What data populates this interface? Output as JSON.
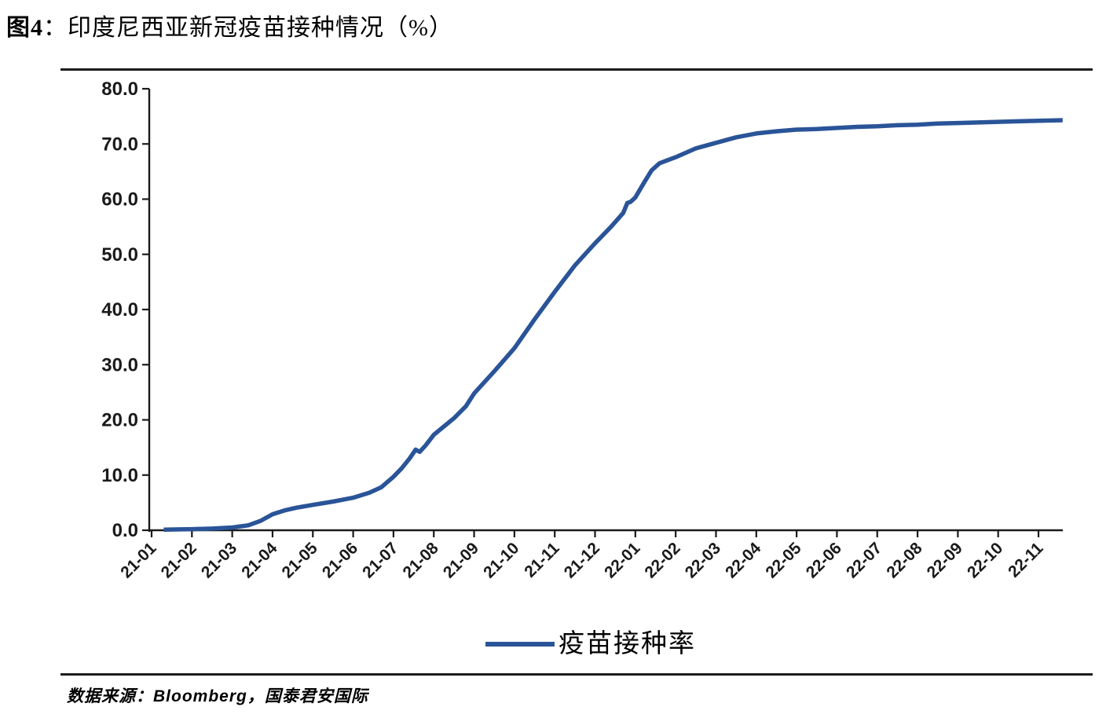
{
  "figure": {
    "title_prefix": "图4",
    "title_separator": "：",
    "title_text": "印度尼西亚新冠疫苗接种情况（%）",
    "source_text": "数据来源：Bloomberg，国泰君安国际"
  },
  "legend": {
    "label": "疫苗接种率"
  },
  "colors": {
    "line": "#2A5498",
    "axis": "#1a1a1a"
  },
  "chart_data": {
    "type": "line",
    "title": "印度尼西亚新冠疫苗接种情况（%）",
    "xlabel": "",
    "ylabel": "",
    "ylim": [
      0,
      80
    ],
    "ytick_labels": [
      "0.0",
      "10.0",
      "20.0",
      "30.0",
      "40.0",
      "50.0",
      "60.0",
      "70.0",
      "80.0"
    ],
    "x": [
      "21-01",
      "21-02",
      "21-03",
      "21-04",
      "21-05",
      "21-06",
      "21-07",
      "21-08",
      "21-09",
      "21-10",
      "21-11",
      "21-12",
      "22-01",
      "22-02",
      "22-03",
      "22-04",
      "22-05",
      "22-06",
      "22-07",
      "22-08",
      "22-09",
      "22-10",
      "22-11"
    ],
    "series": [
      {
        "name": "疫苗接种率",
        "values": [
          0.0,
          0.2,
          0.5,
          2.9,
          4.6,
          5.9,
          9.7,
          17.3,
          24.8,
          33.0,
          43.2,
          52.0,
          60.3,
          67.6,
          70.2,
          71.9,
          72.6,
          72.9,
          73.2,
          73.5,
          73.8,
          74.0,
          74.2
        ]
      }
    ],
    "trace_months_vs_value": [
      [
        0.3,
        0.1
      ],
      [
        0.7,
        0.15
      ],
      [
        1,
        0.2
      ],
      [
        1.5,
        0.3
      ],
      [
        2,
        0.5
      ],
      [
        2.4,
        0.9
      ],
      [
        2.7,
        1.7
      ],
      [
        3,
        2.9
      ],
      [
        3.3,
        3.6
      ],
      [
        3.6,
        4.1
      ],
      [
        4,
        4.6
      ],
      [
        4.5,
        5.2
      ],
      [
        5,
        5.9
      ],
      [
        5.4,
        6.8
      ],
      [
        5.7,
        7.8
      ],
      [
        6,
        9.7
      ],
      [
        6.2,
        11.2
      ],
      [
        6.4,
        13.0
      ],
      [
        6.55,
        14.6
      ],
      [
        6.65,
        14.2
      ],
      [
        6.8,
        15.4
      ],
      [
        7,
        17.3
      ],
      [
        7.5,
        20.3
      ],
      [
        7.8,
        22.5
      ],
      [
        8,
        24.8
      ],
      [
        8.5,
        28.8
      ],
      [
        9,
        33.0
      ],
      [
        9.5,
        38.2
      ],
      [
        10,
        43.2
      ],
      [
        10.5,
        48.0
      ],
      [
        11,
        52.0
      ],
      [
        11.4,
        55.0
      ],
      [
        11.7,
        57.5
      ],
      [
        11.8,
        59.3
      ],
      [
        11.88,
        59.5
      ],
      [
        12,
        60.3
      ],
      [
        12.2,
        62.8
      ],
      [
        12.4,
        65.2
      ],
      [
        12.6,
        66.5
      ],
      [
        13,
        67.6
      ],
      [
        13.5,
        69.2
      ],
      [
        14,
        70.2
      ],
      [
        14.5,
        71.2
      ],
      [
        15,
        71.9
      ],
      [
        15.5,
        72.3
      ],
      [
        16,
        72.6
      ],
      [
        16.5,
        72.7
      ],
      [
        17,
        72.9
      ],
      [
        17.5,
        73.1
      ],
      [
        18,
        73.2
      ],
      [
        18.5,
        73.4
      ],
      [
        19,
        73.5
      ],
      [
        19.5,
        73.7
      ],
      [
        20,
        73.8
      ],
      [
        20.5,
        73.9
      ],
      [
        21,
        74.0
      ],
      [
        21.5,
        74.1
      ],
      [
        22,
        74.2
      ],
      [
        22.6,
        74.3
      ]
    ],
    "grid": false,
    "legend_position": "bottom"
  }
}
